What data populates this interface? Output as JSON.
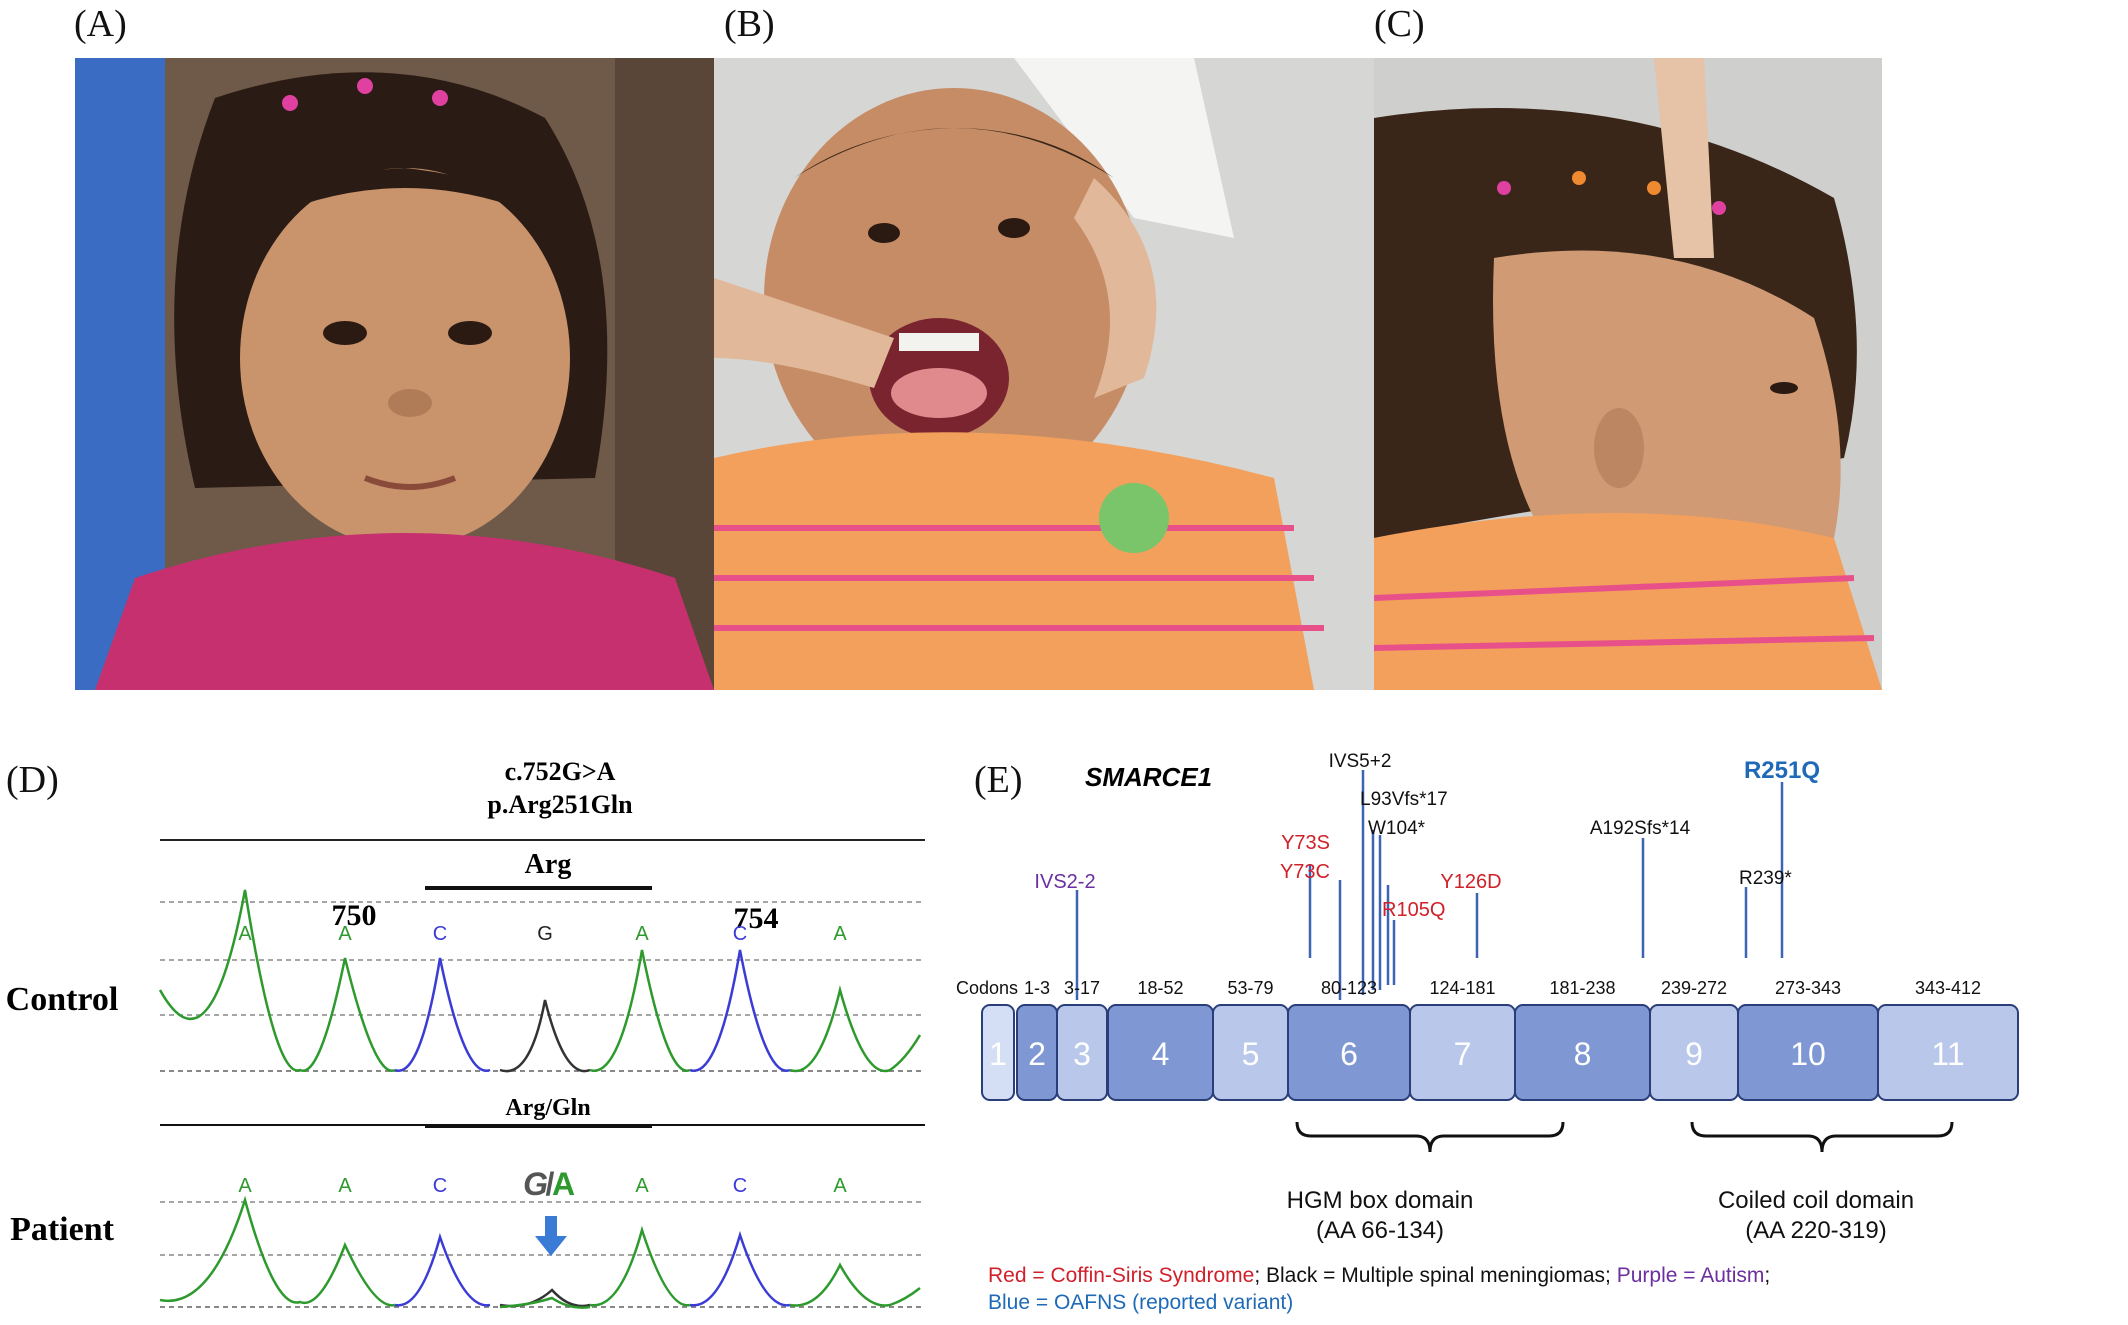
{
  "panels": {
    "a": "(A)",
    "b": "(B)",
    "c": "(C)",
    "d": "(D)",
    "e": "(E)"
  },
  "chromatogram": {
    "mutation_cdna": "c.752G>A",
    "mutation_protein": "p.Arg251Gln",
    "codon_label_control": "Arg",
    "codon_label_patient": "Arg/Gln",
    "position_left": "750",
    "position_right": "754",
    "row_control": "Control",
    "row_patient": "Patient",
    "bases_control": [
      "A",
      "A",
      "C",
      "G",
      "A",
      "C",
      "A"
    ],
    "bases_patient": [
      "A",
      "A",
      "C",
      "A",
      "C",
      "A"
    ],
    "het_call_g": "G",
    "het_call_slash": "/",
    "het_call_a": "A",
    "colors": {
      "A": "#2e9a2e",
      "C": "#3b3bd6",
      "G": "#222222",
      "arrow": "#3a7bd5"
    }
  },
  "gene": {
    "name": "SMARCE1",
    "codons_label": "Codons",
    "exons": [
      {
        "num": "1",
        "range": ""
      },
      {
        "num": "2",
        "range": "1-3"
      },
      {
        "num": "3",
        "range": "3-17"
      },
      {
        "num": "4",
        "range": "18-52"
      },
      {
        "num": "5",
        "range": "53-79"
      },
      {
        "num": "6",
        "range": "80-123"
      },
      {
        "num": "7",
        "range": "124-181"
      },
      {
        "num": "8",
        "range": "181-238"
      },
      {
        "num": "9",
        "range": "239-272"
      },
      {
        "num": "10",
        "range": "273-343"
      },
      {
        "num": "11",
        "range": "343-412"
      }
    ],
    "variants": {
      "ivs2": "IVS2-2",
      "ivs5": "IVS5+2",
      "l93": "L93Vfs*17",
      "y73s": "Y73S",
      "y73c": "Y73C",
      "w104": "W104*",
      "r105q": "R105Q",
      "y126d": "Y126D",
      "a192": "A192Sfs*14",
      "r239": "R239*",
      "r251q": "R251Q"
    },
    "domains": {
      "hmg_name": "HGM box domain",
      "hmg_range": "(AA 66-134)",
      "cc_name": "Coiled coil domain",
      "cc_range": "(AA 220-319)"
    },
    "colors": {
      "red": "#d0202a",
      "purple": "#6b2fa0",
      "blue": "#1e6ab8",
      "black": "#111111",
      "line": "#3d63b5",
      "exon_dark": "#7f98d4",
      "exon_light": "#b8c7ea",
      "exon_first": "#d4def4"
    }
  },
  "legend": {
    "red_text": "Red = Coffin-Siris Syndrome",
    "black_text": "; Black = Multiple spinal meningiomas; ",
    "purple_text": "Purple = Autism",
    "end_text": ";",
    "blue_text": "Blue = OAFNS (reported variant)"
  }
}
